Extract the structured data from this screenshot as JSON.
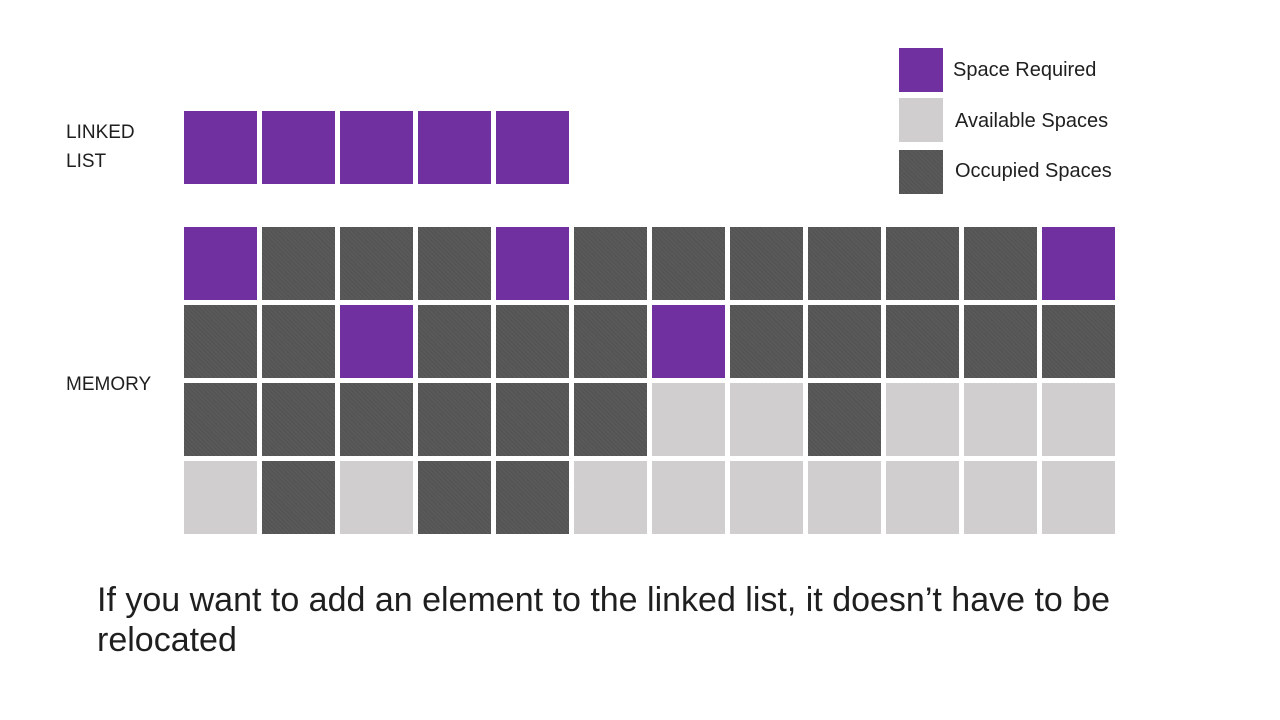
{
  "labels": {
    "linked_list": "LINKED LIST",
    "memory": "MEMORY"
  },
  "legend": [
    {
      "key": "required",
      "text": "Space Required",
      "color": "#7030a0"
    },
    {
      "key": "available",
      "text": "Available Spaces",
      "color": "#d0cecf"
    },
    {
      "key": "occupied",
      "text": "Occupied Spaces",
      "color": "#595959"
    }
  ],
  "linked_list": [
    "R",
    "R",
    "R",
    "R",
    "R"
  ],
  "memory_grid": [
    [
      "R",
      "O",
      "O",
      "O",
      "R",
      "O",
      "O",
      "O",
      "O",
      "O",
      "O",
      "R"
    ],
    [
      "O",
      "O",
      "R",
      "O",
      "O",
      "O",
      "R",
      "O",
      "O",
      "O",
      "O",
      "O"
    ],
    [
      "O",
      "O",
      "O",
      "O",
      "O",
      "O",
      "A",
      "A",
      "O",
      "A",
      "A",
      "A"
    ],
    [
      "A",
      "O",
      "A",
      "O",
      "O",
      "A",
      "A",
      "A",
      "A",
      "A",
      "A",
      "A"
    ]
  ],
  "caption": "If you want to add an element to the linked list, it doesn’t have to be relocated"
}
